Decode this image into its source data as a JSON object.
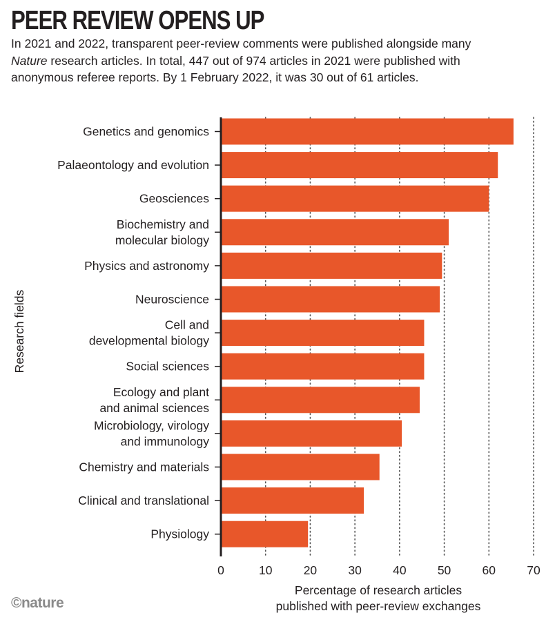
{
  "header": {
    "title": "PEER REVIEW OPENS UP",
    "subtitle_part1": "In 2021 and 2022, transparent peer-review comments were published alongside many ",
    "subtitle_italic": "Nature",
    "subtitle_part2": " research articles. In total, 447 out of 974 articles in 2021 were published with anonymous referee reports. By 1 February 2022, it was 30 out of 61 articles."
  },
  "brand": {
    "text": "©nature"
  },
  "colors": {
    "bar": "#e8572a",
    "axis": "#231f20",
    "grid": "#555555",
    "brand": "#8a8a8a"
  },
  "chart_data": {
    "type": "bar",
    "orientation": "horizontal",
    "ylabel": "Research fields",
    "xlabel": [
      "Percentage of research articles",
      "published with peer-review exchanges"
    ],
    "xlim": [
      0,
      70
    ],
    "xticks": [
      0,
      10,
      20,
      30,
      40,
      50,
      60,
      70
    ],
    "grid": "vertical-dotted",
    "categories": [
      [
        "Genetics and genomics"
      ],
      [
        "Palaeontology and evolution"
      ],
      [
        "Geosciences"
      ],
      [
        "Biochemistry and",
        "molecular biology"
      ],
      [
        "Physics and astronomy"
      ],
      [
        "Neuroscience"
      ],
      [
        "Cell and",
        "developmental biology"
      ],
      [
        "Social sciences"
      ],
      [
        "Ecology and plant",
        "and animal sciences"
      ],
      [
        "Microbiology, virology",
        "and immunology"
      ],
      [
        "Chemistry and materials"
      ],
      [
        "Clinical and translational"
      ],
      [
        "Physiology"
      ]
    ],
    "values": [
      65.5,
      62,
      60,
      51,
      49.5,
      49,
      45.5,
      45.5,
      44.5,
      40.5,
      35.5,
      32,
      19.5
    ]
  }
}
